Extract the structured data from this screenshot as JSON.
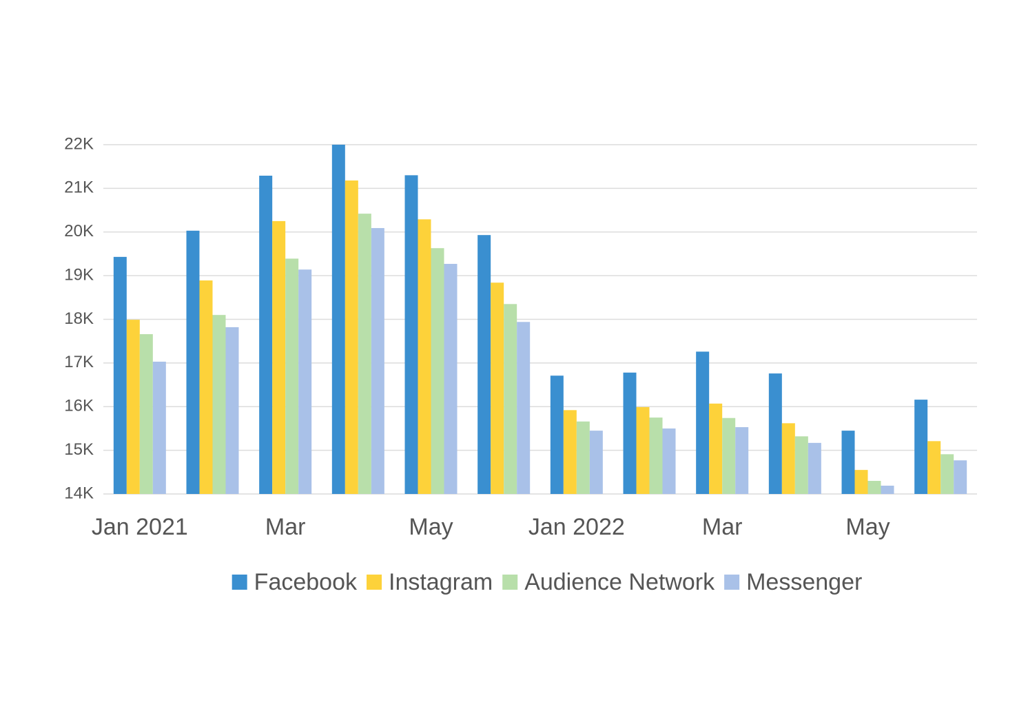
{
  "chart_data": {
    "type": "bar",
    "categories": [
      "Jan 2021",
      null,
      "Mar",
      null,
      "May",
      null,
      "Jan 2022",
      null,
      "Mar",
      null,
      "May",
      null
    ],
    "series": [
      {
        "name": "Facebook",
        "color": "#3a8fd0",
        "values": [
          19430,
          20030,
          21290,
          22000,
          21300,
          19930,
          16710,
          16780,
          17260,
          16760,
          15450,
          16160
        ]
      },
      {
        "name": "Instagram",
        "color": "#fdd23a",
        "values": [
          17990,
          18890,
          20250,
          21180,
          20290,
          18840,
          15920,
          15990,
          16070,
          15620,
          14550,
          15210
        ]
      },
      {
        "name": "Audience Network",
        "color": "#b8dfaa",
        "values": [
          17660,
          18100,
          19390,
          20420,
          19630,
          18350,
          15660,
          15750,
          15740,
          15320,
          14300,
          14910
        ]
      },
      {
        "name": "Messenger",
        "color": "#a9c1e8",
        "values": [
          17030,
          17820,
          19140,
          20090,
          19270,
          17940,
          15450,
          15500,
          15530,
          15170,
          14190,
          14770
        ]
      }
    ],
    "ylim": [
      14000,
      22000
    ],
    "yticks": [
      {
        "value": 14000,
        "label": "14K"
      },
      {
        "value": 15000,
        "label": "15K"
      },
      {
        "value": 16000,
        "label": "16K"
      },
      {
        "value": 17000,
        "label": "17K"
      },
      {
        "value": 18000,
        "label": "18K"
      },
      {
        "value": 19000,
        "label": "19K"
      },
      {
        "value": 20000,
        "label": "20K"
      },
      {
        "value": 21000,
        "label": "21K"
      },
      {
        "value": 22000,
        "label": "22K"
      }
    ],
    "grid": true,
    "legend": "bottom"
  }
}
